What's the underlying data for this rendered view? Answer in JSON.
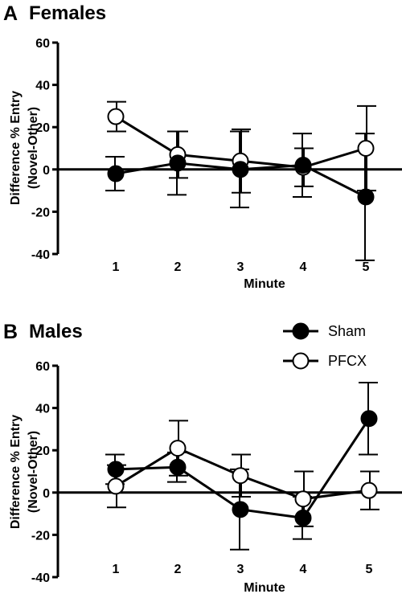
{
  "chart_data": [
    {
      "type": "line",
      "panel_letter": "A",
      "title": "Females",
      "xlabel": "Minute",
      "ylabel": [
        "Difference % Entry",
        "(Novel-Other)"
      ],
      "categories": [
        "1",
        "2",
        "3",
        "4",
        "5"
      ],
      "ylim": [
        -40,
        60
      ],
      "yticks": [
        -40,
        -20,
        0,
        20,
        40,
        60
      ],
      "series": [
        {
          "name": "Sham",
          "marker": "filled-circle",
          "values": [
            -2,
            3,
            0,
            2,
            -13
          ],
          "error": [
            8,
            15,
            18,
            15,
            30
          ]
        },
        {
          "name": "PFCX",
          "marker": "open-circle",
          "values": [
            25,
            7,
            4,
            1,
            10
          ],
          "error": [
            7,
            11,
            15,
            9,
            20
          ]
        }
      ]
    },
    {
      "type": "line",
      "panel_letter": "B",
      "title": "Males",
      "xlabel": "Minute",
      "ylabel": [
        "Difference % Entry",
        "(Novel-Other)"
      ],
      "categories": [
        "1",
        "2",
        "3",
        "4",
        "5"
      ],
      "ylim": [
        -40,
        60
      ],
      "yticks": [
        -40,
        -20,
        0,
        20,
        40,
        60
      ],
      "legend": {
        "placement": "top-right",
        "entries": [
          "Sham",
          "PFCX"
        ]
      },
      "series": [
        {
          "name": "Sham",
          "marker": "filled-circle",
          "values": [
            11,
            12,
            -8,
            -12,
            35
          ],
          "error": [
            7,
            7,
            19,
            10,
            17
          ]
        },
        {
          "name": "PFCX",
          "marker": "open-circle",
          "values": [
            3,
            21,
            8,
            -3,
            1
          ],
          "error": [
            10,
            13,
            10,
            13,
            9
          ]
        }
      ]
    }
  ]
}
